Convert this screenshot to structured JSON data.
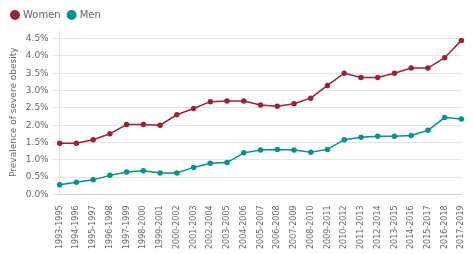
{
  "chart_data": {
    "type": "line",
    "ylabel": "Prevalence of severe obesity",
    "categories": [
      "1993-1995",
      "1994-1996",
      "1995-1997",
      "1996-1998",
      "1997-1999",
      "1998-2000",
      "1999-2001",
      "2000-2002",
      "2001-2003",
      "2002-2004",
      "2003-2005",
      "2004-2006",
      "2005-2007",
      "2006-2008",
      "2007-2009",
      "2008-2010",
      "2009-2011",
      "2010-2012",
      "2011-2013",
      "2012-2014",
      "2013-2015",
      "2014-2016",
      "2015-2017",
      "2016-2018",
      "2017-2019"
    ],
    "series": [
      {
        "name": "Women",
        "color": "#9b2335",
        "values": [
          1.48,
          1.48,
          1.58,
          1.75,
          2.02,
          2.02,
          2.0,
          2.3,
          2.48,
          2.68,
          2.7,
          2.7,
          2.58,
          2.55,
          2.62,
          2.78,
          3.15,
          3.5,
          3.38,
          3.38,
          3.5,
          3.65,
          3.65,
          3.95,
          4.45
        ]
      },
      {
        "name": "Men",
        "color": "#00918a",
        "values": [
          0.28,
          0.35,
          0.42,
          0.55,
          0.65,
          0.68,
          0.62,
          0.62,
          0.78,
          0.9,
          0.92,
          1.2,
          1.28,
          1.3,
          1.28,
          1.22,
          1.3,
          1.58,
          1.65,
          1.68,
          1.68,
          1.7,
          1.85,
          2.22,
          2.18
        ]
      }
    ],
    "ylim": [
      0.0,
      4.75
    ],
    "yticks": [
      {
        "value": 0.0,
        "label": "0.0%"
      },
      {
        "value": 0.5,
        "label": "0.5%"
      },
      {
        "value": 1.0,
        "label": "1.0%"
      },
      {
        "value": 1.5,
        "label": "1.5%"
      },
      {
        "value": 2.0,
        "label": "2.0%"
      },
      {
        "value": 2.5,
        "label": "2.5%"
      },
      {
        "value": 3.0,
        "label": "3.0%"
      },
      {
        "value": 3.5,
        "label": "3.5%"
      },
      {
        "value": 4.0,
        "label": "4.0%"
      },
      {
        "value": 4.5,
        "label": "4.5%"
      }
    ],
    "grid": true,
    "legend": "upper left",
    "marker": "circle"
  }
}
